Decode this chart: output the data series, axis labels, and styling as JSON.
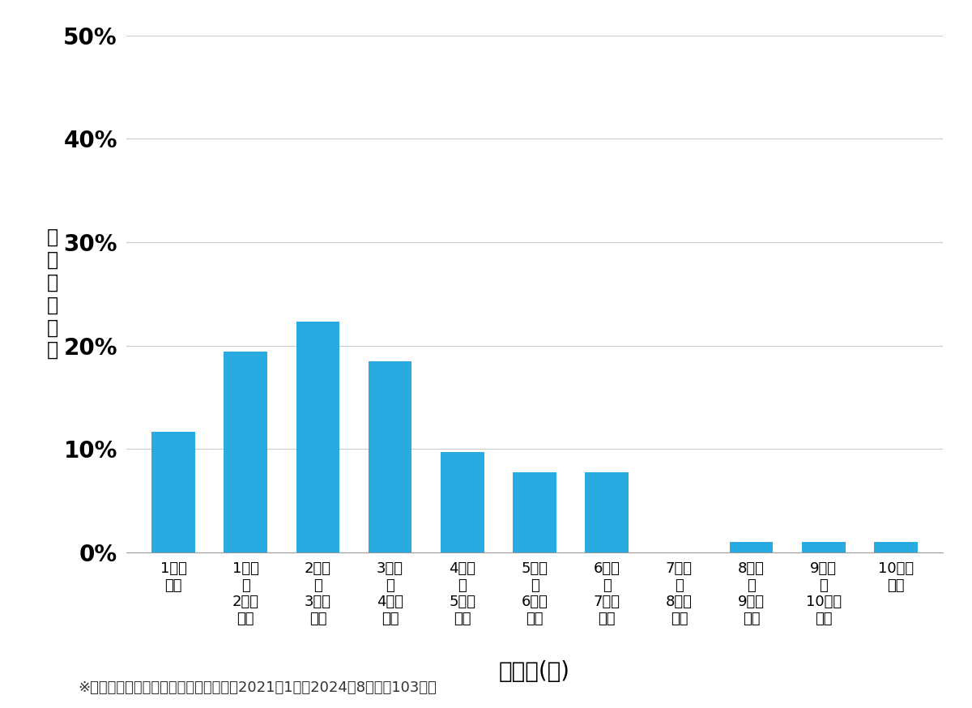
{
  "categories": [
    "1万円\n未満",
    "1万円\n～\n2万円\n未満",
    "2万円\n～\n3万円\n未満",
    "3万円\n～\n4万円\n未満",
    "4万円\n～\n5万円\n未満",
    "5万円\n～\n6万円\n未満",
    "6万円\n～\n7万円\n未満",
    "7万円\n～\n8万円\n未満",
    "8万円\n～\n9万円\n未満",
    "9万円\n～\n10万円\n未満",
    "10万円\n以上"
  ],
  "values": [
    0.1165,
    0.1942,
    0.2233,
    0.1845,
    0.0971,
    0.0777,
    0.0777,
    0.0,
    0.0097,
    0.0097,
    0.0097
  ],
  "bar_color": "#29ABE2",
  "ylabel": "価\n格\n帯\nの\n割\n合",
  "xlabel": "価格帯(円)",
  "footnote": "※弊社受付の案件を対象に集計（期間：2021年1月～2024年8月、計103件）",
  "ylim": [
    0,
    0.5
  ],
  "yticks": [
    0.0,
    0.1,
    0.2,
    0.3,
    0.4,
    0.5
  ],
  "ytick_labels": [
    "0%",
    "10%",
    "20%",
    "30%",
    "40%",
    "50%"
  ],
  "background_color": "#ffffff",
  "grid_color": "#cccccc",
  "ylabel_fontsize": 17,
  "xlabel_fontsize": 20,
  "tick_fontsize": 13,
  "ytick_fontsize": 20,
  "footnote_fontsize": 13
}
